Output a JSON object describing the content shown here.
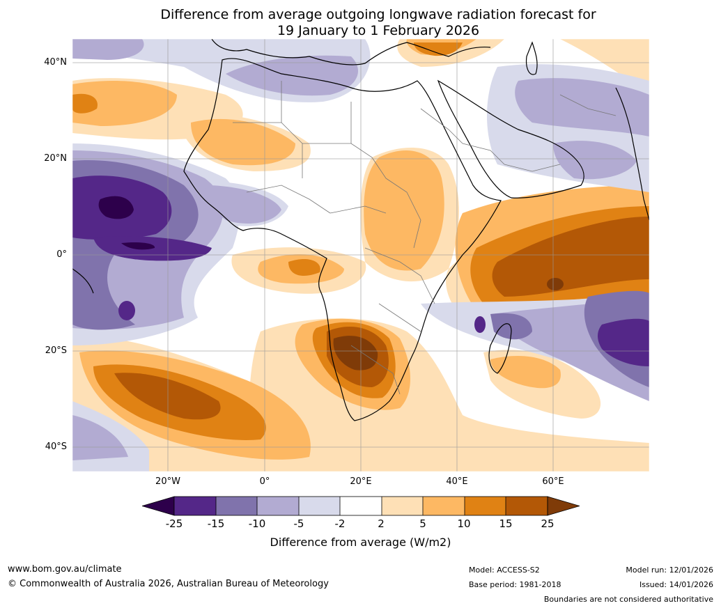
{
  "title": {
    "line1": "Difference from average outgoing longwave radiation forecast for",
    "line2": "19 January to 1 February 2026"
  },
  "axes": {
    "lat_labels": [
      "40°N",
      "20°N",
      "0°",
      "20°S",
      "40°S"
    ],
    "lon_labels": [
      "20°W",
      "0°",
      "20°E",
      "40°E",
      "60°E"
    ]
  },
  "colorbar": {
    "ticks": [
      "-25",
      "-15",
      "-10",
      "-5",
      "-2",
      "2",
      "5",
      "10",
      "15",
      "25"
    ],
    "title": "Difference from average (W/m2)",
    "colors": [
      "#2d004b",
      "#542788",
      "#8073ac",
      "#b2abd2",
      "#d8daeb",
      "#ffffff",
      "#fee0b6",
      "#fdb863",
      "#e08214",
      "#b35806",
      "#7f3b08"
    ]
  },
  "footer": {
    "website": "www.bom.gov.au/climate",
    "copyright": "© Commonwealth of Australia 2026, Australian Bureau of Meteorology",
    "model": "Model: ACCESS-S2",
    "base_period": "Base period: 1981-2018",
    "model_run": "Model run: 12/01/2026",
    "issued": "Issued: 14/01/2026",
    "boundaries": "Boundaries are not considered authoritative"
  }
}
